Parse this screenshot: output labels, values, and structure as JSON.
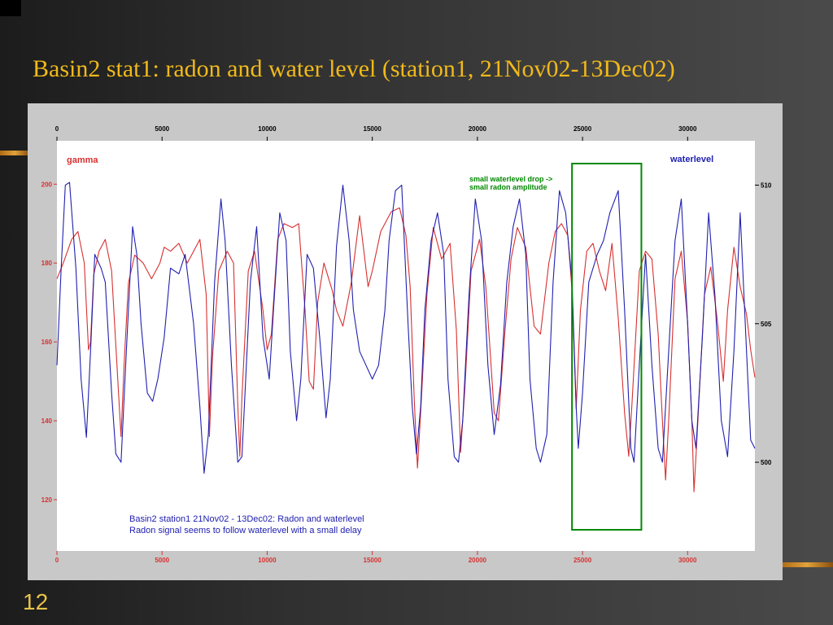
{
  "slide": {
    "title": "Basin2 stat1: radon and water level (station1, 21Nov02-13Dec02)",
    "number": "12",
    "colors": {
      "background": "#2b2b2b",
      "title": "#f0b91a",
      "panel": "#c8c8c8"
    }
  },
  "chart_data": {
    "type": "line",
    "x_ticks": [
      "0",
      "5000",
      "10000",
      "15000",
      "20000",
      "25000",
      "30000"
    ],
    "xlim": [
      0,
      33200
    ],
    "left_axis": {
      "label": "gamma",
      "ylim": [
        107,
        211
      ],
      "ticks": [
        "200",
        "180",
        "160",
        "140",
        "120"
      ]
    },
    "right_axis": {
      "label": "waterlevel",
      "ylim": [
        496.8,
        511.6
      ],
      "ticks": [
        "510",
        "505",
        "500"
      ]
    },
    "colors": {
      "gamma": "#d83030",
      "waterlevel": "#2020b0",
      "annotation": "#008800"
    },
    "annotation": {
      "lines": [
        "small waterlevel drop ->",
        "small radon amplitude"
      ],
      "x_range": [
        24500,
        27800
      ]
    },
    "caption": [
      "Basin2 station1  21Nov02 - 13Dec02: Radon and waterlevel",
      "Radon signal seems to follow waterlevel with a small delay"
    ],
    "series": [
      {
        "name": "gamma",
        "axis": "left",
        "points": [
          [
            0,
            176
          ],
          [
            300,
            180
          ],
          [
            700,
            186
          ],
          [
            1000,
            188
          ],
          [
            1300,
            180
          ],
          [
            1500,
            158
          ],
          [
            1600,
            160
          ],
          [
            1750,
            177
          ],
          [
            2000,
            183
          ],
          [
            2300,
            186
          ],
          [
            2600,
            178
          ],
          [
            2900,
            150
          ],
          [
            3050,
            136
          ],
          [
            3200,
            155
          ],
          [
            3400,
            175
          ],
          [
            3700,
            182
          ],
          [
            4100,
            180
          ],
          [
            4500,
            176
          ],
          [
            4900,
            180
          ],
          [
            5100,
            184
          ],
          [
            5400,
            183
          ],
          [
            5800,
            185
          ],
          [
            6200,
            180
          ],
          [
            6500,
            183
          ],
          [
            6800,
            186
          ],
          [
            7100,
            172
          ],
          [
            7250,
            136
          ],
          [
            7400,
            156
          ],
          [
            7700,
            178
          ],
          [
            8100,
            183
          ],
          [
            8400,
            180
          ],
          [
            8600,
            144
          ],
          [
            8700,
            131
          ],
          [
            8800,
            146
          ],
          [
            9100,
            178
          ],
          [
            9400,
            183
          ],
          [
            9800,
            168
          ],
          [
            10000,
            158
          ],
          [
            10200,
            162
          ],
          [
            10500,
            186
          ],
          [
            10800,
            190
          ],
          [
            11200,
            189
          ],
          [
            11500,
            190
          ],
          [
            11800,
            168
          ],
          [
            12000,
            150
          ],
          [
            12200,
            148
          ],
          [
            12400,
            170
          ],
          [
            12700,
            180
          ],
          [
            13100,
            173
          ],
          [
            13300,
            168
          ],
          [
            13600,
            164
          ],
          [
            14000,
            175
          ],
          [
            14400,
            192
          ],
          [
            14800,
            174
          ],
          [
            15000,
            178
          ],
          [
            15400,
            188
          ],
          [
            15900,
            193
          ],
          [
            16300,
            194
          ],
          [
            16600,
            187
          ],
          [
            16800,
            174
          ],
          [
            17000,
            145
          ],
          [
            17150,
            128
          ],
          [
            17300,
            142
          ],
          [
            17600,
            172
          ],
          [
            17900,
            189
          ],
          [
            18300,
            181
          ],
          [
            18700,
            185
          ],
          [
            19000,
            163
          ],
          [
            19200,
            132
          ],
          [
            19400,
            148
          ],
          [
            19700,
            178
          ],
          [
            20100,
            186
          ],
          [
            20400,
            174
          ],
          [
            20600,
            158
          ],
          [
            20800,
            142
          ],
          [
            21000,
            140
          ],
          [
            21300,
            162
          ],
          [
            21600,
            181
          ],
          [
            21900,
            189
          ],
          [
            22300,
            184
          ],
          [
            22700,
            164
          ],
          [
            23000,
            162
          ],
          [
            23400,
            180
          ],
          [
            23700,
            188
          ],
          [
            24000,
            190
          ],
          [
            24300,
            187
          ],
          [
            24500,
            173
          ],
          [
            24700,
            143
          ],
          [
            24900,
            168
          ],
          [
            25200,
            183
          ],
          [
            25500,
            185
          ],
          [
            25800,
            178
          ],
          [
            26100,
            173
          ],
          [
            26400,
            185
          ],
          [
            26700,
            166
          ],
          [
            27000,
            142
          ],
          [
            27200,
            131
          ],
          [
            27350,
            144
          ],
          [
            27700,
            178
          ],
          [
            28000,
            183
          ],
          [
            28300,
            181
          ],
          [
            28600,
            162
          ],
          [
            28800,
            140
          ],
          [
            28950,
            125
          ],
          [
            29100,
            140
          ],
          [
            29400,
            176
          ],
          [
            29700,
            183
          ],
          [
            30000,
            165
          ],
          [
            30200,
            140
          ],
          [
            30300,
            122
          ],
          [
            30450,
            136
          ],
          [
            30800,
            172
          ],
          [
            31100,
            179
          ],
          [
            31400,
            166
          ],
          [
            31700,
            150
          ],
          [
            31900,
            168
          ],
          [
            32200,
            184
          ],
          [
            32500,
            174
          ],
          [
            32800,
            167
          ],
          [
            33000,
            158
          ],
          [
            33200,
            151
          ]
        ]
      },
      {
        "name": "waterlevel",
        "axis": "right",
        "points": [
          [
            0,
            503.5
          ],
          [
            200,
            507.0
          ],
          [
            400,
            510.0
          ],
          [
            600,
            510.1
          ],
          [
            900,
            507.0
          ],
          [
            1150,
            503.0
          ],
          [
            1400,
            500.9
          ],
          [
            1600,
            504.0
          ],
          [
            1800,
            507.5
          ],
          [
            2100,
            507.0
          ],
          [
            2300,
            506.5
          ],
          [
            2600,
            502.5
          ],
          [
            2800,
            500.3
          ],
          [
            3050,
            500.0
          ],
          [
            3300,
            504.0
          ],
          [
            3600,
            508.5
          ],
          [
            3800,
            507.5
          ],
          [
            4000,
            505.0
          ],
          [
            4300,
            502.5
          ],
          [
            4550,
            502.2
          ],
          [
            4800,
            503.0
          ],
          [
            5100,
            504.5
          ],
          [
            5400,
            507.0
          ],
          [
            5800,
            506.8
          ],
          [
            6100,
            507.5
          ],
          [
            6500,
            505.0
          ],
          [
            6800,
            502.0
          ],
          [
            7000,
            499.6
          ],
          [
            7200,
            501.0
          ],
          [
            7500,
            506.5
          ],
          [
            7800,
            509.5
          ],
          [
            8000,
            508.0
          ],
          [
            8300,
            503.5
          ],
          [
            8600,
            500.0
          ],
          [
            8800,
            500.2
          ],
          [
            9200,
            506.5
          ],
          [
            9500,
            508.5
          ],
          [
            9800,
            504.5
          ],
          [
            10100,
            503.0
          ],
          [
            10300,
            505.5
          ],
          [
            10600,
            509.0
          ],
          [
            10900,
            508.0
          ],
          [
            11100,
            504.0
          ],
          [
            11400,
            501.5
          ],
          [
            11600,
            503.0
          ],
          [
            11900,
            507.5
          ],
          [
            12200,
            507.0
          ],
          [
            12500,
            504.5
          ],
          [
            12800,
            501.6
          ],
          [
            13000,
            503.0
          ],
          [
            13300,
            507.8
          ],
          [
            13600,
            510.0
          ],
          [
            13900,
            508.0
          ],
          [
            14100,
            505.5
          ],
          [
            14400,
            504.0
          ],
          [
            14700,
            503.5
          ],
          [
            15000,
            503.0
          ],
          [
            15300,
            503.5
          ],
          [
            15600,
            505.5
          ],
          [
            15800,
            508.0
          ],
          [
            16100,
            509.8
          ],
          [
            16400,
            510.0
          ],
          [
            16700,
            505.0
          ],
          [
            16900,
            502.0
          ],
          [
            17100,
            500.3
          ],
          [
            17300,
            502.0
          ],
          [
            17500,
            505.5
          ],
          [
            17800,
            508.0
          ],
          [
            18100,
            509.0
          ],
          [
            18400,
            507.5
          ],
          [
            18600,
            503.0
          ],
          [
            18900,
            500.2
          ],
          [
            19100,
            500.0
          ],
          [
            19300,
            501.5
          ],
          [
            19600,
            506.0
          ],
          [
            19900,
            509.5
          ],
          [
            20200,
            508.0
          ],
          [
            20500,
            503.5
          ],
          [
            20800,
            501.0
          ],
          [
            21100,
            502.8
          ],
          [
            21400,
            506.5
          ],
          [
            21700,
            508.5
          ],
          [
            22000,
            509.5
          ],
          [
            22300,
            507.5
          ],
          [
            22500,
            503.0
          ],
          [
            22800,
            500.5
          ],
          [
            23000,
            500.0
          ],
          [
            23300,
            501.0
          ],
          [
            23600,
            506.5
          ],
          [
            23900,
            509.8
          ],
          [
            24200,
            509.0
          ],
          [
            24500,
            506.5
          ],
          [
            24700,
            502.0
          ],
          [
            24800,
            500.5
          ],
          [
            25000,
            502.5
          ],
          [
            25300,
            506.5
          ],
          [
            25700,
            507.5
          ],
          [
            26000,
            508.0
          ],
          [
            26300,
            509.0
          ],
          [
            26700,
            509.8
          ],
          [
            27000,
            505.5
          ],
          [
            27300,
            500.5
          ],
          [
            27450,
            500.0
          ],
          [
            27700,
            503.5
          ],
          [
            28000,
            507.5
          ],
          [
            28300,
            503.5
          ],
          [
            28600,
            500.5
          ],
          [
            28800,
            500.0
          ],
          [
            29100,
            504.0
          ],
          [
            29400,
            508.0
          ],
          [
            29700,
            509.5
          ],
          [
            30000,
            505.0
          ],
          [
            30200,
            501.5
          ],
          [
            30400,
            500.5
          ],
          [
            30700,
            504.5
          ],
          [
            31000,
            509.0
          ],
          [
            31300,
            506.0
          ],
          [
            31600,
            501.5
          ],
          [
            31900,
            500.2
          ],
          [
            32200,
            504.0
          ],
          [
            32500,
            509.0
          ],
          [
            32800,
            504.0
          ],
          [
            33000,
            500.8
          ],
          [
            33200,
            500.5
          ]
        ]
      }
    ]
  }
}
